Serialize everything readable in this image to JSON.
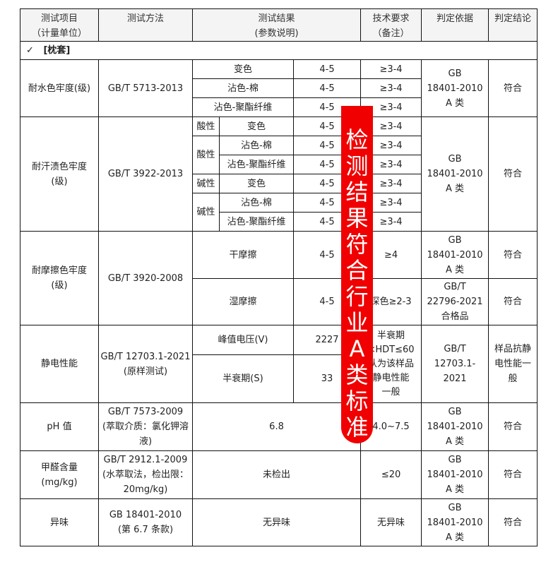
{
  "header": {
    "item": "测试项目",
    "item_unit": "（计量单位）",
    "method": "测试方法",
    "result": "测试结果",
    "result_note": "(参数说明)",
    "req": "技术要求",
    "req_note": "（备注）",
    "basis": "判定依据",
    "conclusion": "判定结论"
  },
  "section": {
    "check": "✓",
    "label": "[枕套]"
  },
  "water": {
    "item": "耐水色牢度(级)",
    "method": "GB/T 5713-2013",
    "rows": [
      {
        "name": "变色",
        "value": "4-5",
        "req": "≥3-4"
      },
      {
        "name": "沾色-棉",
        "value": "4-5",
        "req": "≥3-4"
      },
      {
        "name": "沾色-聚酯纤维",
        "value": "4-5",
        "req": "≥3-4"
      }
    ],
    "basis": [
      "GB",
      "18401-2010",
      "A 类"
    ],
    "conclusion": "符合"
  },
  "sweat": {
    "item": "耐汗渍色牢度",
    "unit": "(级)",
    "method": "GB/T 3922-2013",
    "acid": "酸性",
    "alkali": "碱性",
    "rows": [
      {
        "name": "变色",
        "value": "4-5",
        "req": "≥3-4"
      },
      {
        "name": "沾色-棉",
        "value": "4-5",
        "req": "≥3-4"
      },
      {
        "name": "沾色-聚酯纤维",
        "value": "4-5",
        "req": "≥3-4"
      },
      {
        "name": "变色",
        "value": "4-5",
        "req": "≥3-4"
      },
      {
        "name": "沾色-棉",
        "value": "4-5",
        "req": "≥3-4"
      },
      {
        "name": "沾色-聚酯纤维",
        "value": "4-5",
        "req": "≥3-4"
      }
    ],
    "basis": [
      "GB",
      "18401-2010",
      "A 类"
    ],
    "conclusion": "符合"
  },
  "rub": {
    "item": "耐摩擦色牢度",
    "unit": "(级)",
    "method": "GB/T 3920-2008",
    "dry": {
      "name": "干摩擦",
      "value": "4-5",
      "req": "≥4",
      "basis": [
        "GB",
        "18401-2010",
        "A 类"
      ],
      "conclusion": "符合"
    },
    "wet": {
      "name": "湿摩擦",
      "value": "4-5",
      "req": "深色≥2-3",
      "basis": [
        "GB/T",
        "22796-2021",
        "合格品"
      ],
      "conclusion": "符合"
    }
  },
  "static": {
    "item": "静电性能",
    "method": "GB/T 12703.1-2021",
    "method_note": "(原样测试)",
    "peak": {
      "name": "峰值电压(V)",
      "value": "2227"
    },
    "half": {
      "name": "半衰期(S)",
      "value": "33"
    },
    "req": [
      "半衰期",
      "<HDT≤60",
      "认为该样品",
      "静电性能",
      "一般"
    ],
    "basis": [
      "GB/T",
      "12703.1-2021"
    ],
    "conclusion": "样品抗静电性能一般"
  },
  "ph": {
    "item": "pH 值",
    "method": "GB/T 7573-2009",
    "method_note": "(萃取介质：氯化钾溶液)",
    "value": "6.8",
    "req": "4.0~7.5",
    "basis": [
      "GB",
      "18401-2010",
      "A 类"
    ],
    "conclusion": "符合"
  },
  "formaldehyde": {
    "item": "甲醛含量",
    "unit": "(mg/kg)",
    "method": "GB/T 2912.1-2009",
    "method_note": "(水萃取法，检出限：20mg/kg)",
    "value": "未检出",
    "req": "≤20",
    "basis": [
      "GB",
      "18401-2010",
      "A 类"
    ],
    "conclusion": "符合"
  },
  "odor": {
    "item": "异味",
    "method": "GB 18401-2010",
    "method_note": "(第 6.7 条款)",
    "value": "无异味",
    "req": "无异味",
    "basis": [
      "GB",
      "18401-2010",
      "A 类"
    ],
    "conclusion": "符合"
  },
  "banner": {
    "text": "检测结果符合行业A类标准",
    "color": "#f00000"
  }
}
